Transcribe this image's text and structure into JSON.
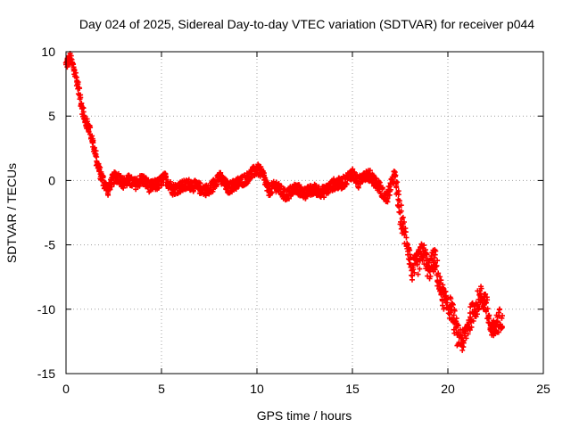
{
  "chart_data": {
    "type": "scatter",
    "title": "Day 024 of 2025, Sidereal Day-to-day VTEC variation (SDTVAR) for receiver p044",
    "xlabel": "GPS time / hours",
    "ylabel": "SDTVAR / TECUs",
    "xlim": [
      0,
      25
    ],
    "ylim": [
      -15,
      10
    ],
    "grid": true,
    "x_ticks": [
      0,
      5,
      10,
      15,
      20,
      25
    ],
    "x_tick_labels": [
      "0",
      "5",
      "10",
      "15",
      "20",
      "25"
    ],
    "y_ticks": [
      -15,
      -10,
      -5,
      0,
      5,
      10
    ],
    "y_tick_labels": [
      "-15",
      "-10",
      "-5",
      "0",
      "5",
      "10"
    ],
    "marker": "+",
    "marker_color": "#ff0000",
    "series": [
      {
        "name": "SDTVAR",
        "color": "#ff0000",
        "x": [
          0.0,
          0.2,
          0.4,
          0.6,
          0.8,
          1.0,
          1.2,
          1.4,
          1.6,
          1.8,
          2.0,
          2.2,
          2.4,
          2.6,
          2.8,
          3.0,
          3.3,
          3.6,
          4.0,
          4.4,
          4.8,
          5.2,
          5.6,
          6.0,
          6.5,
          7.0,
          7.5,
          8.0,
          8.5,
          9.0,
          9.5,
          10.0,
          10.3,
          10.6,
          11.0,
          11.5,
          12.0,
          12.5,
          13.0,
          13.5,
          14.0,
          14.5,
          15.0,
          15.3,
          15.6,
          16.0,
          16.4,
          16.8,
          17.2,
          17.5,
          17.7,
          17.9,
          18.1,
          18.4,
          18.7,
          19.0,
          19.3,
          19.6,
          19.9,
          20.2,
          20.5,
          20.8,
          21.1,
          21.4,
          21.7,
          22.0,
          22.3,
          22.6,
          22.85
        ],
        "y": [
          9.0,
          9.5,
          8.8,
          7.5,
          6.0,
          4.5,
          4.2,
          3.0,
          1.5,
          0.5,
          -0.2,
          -0.8,
          0.0,
          0.3,
          0.2,
          -0.2,
          0.0,
          -0.3,
          0.1,
          -0.5,
          -0.3,
          0.2,
          -0.7,
          -0.5,
          -0.3,
          -0.6,
          -0.8,
          0.3,
          -0.6,
          -0.2,
          0.2,
          0.9,
          0.5,
          -0.8,
          -0.4,
          -1.2,
          -0.6,
          -1.0,
          -0.7,
          -0.9,
          -0.3,
          -0.2,
          0.6,
          -0.2,
          0.5,
          0.3,
          -0.5,
          -1.5,
          0.5,
          -2.5,
          -4.0,
          -5.0,
          -7.0,
          -6.5,
          -5.5,
          -7.0,
          -6.0,
          -8.5,
          -9.5,
          -10.0,
          -12.0,
          -12.5,
          -11.0,
          -10.0,
          -9.0,
          -9.5,
          -12.0,
          -11.0,
          -10.5
        ]
      }
    ]
  }
}
